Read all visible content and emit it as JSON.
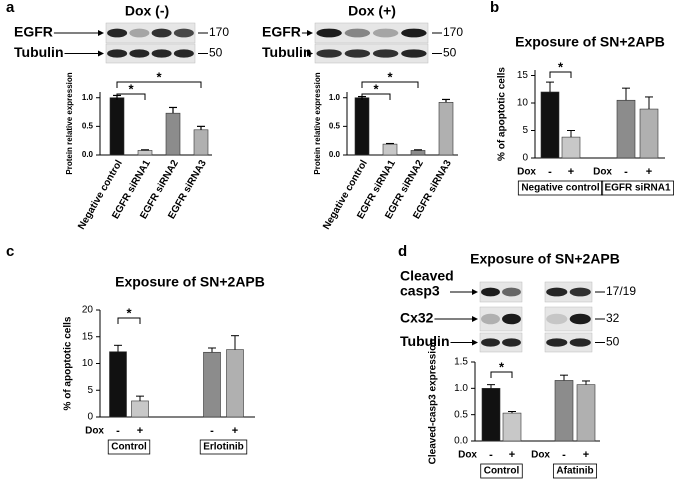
{
  "panels": [
    "a",
    "b",
    "c",
    "d"
  ],
  "blots": [
    {
      "title": "Dox (-)",
      "rows": [
        {
          "label": "EGFR",
          "size": "170"
        },
        {
          "label": "Tubulin",
          "size": "50"
        }
      ]
    },
    {
      "title": "Dox (+)",
      "rows": [
        {
          "label": "EGFR",
          "size": "170"
        },
        {
          "label": "Tubulin",
          "size": "50"
        }
      ]
    },
    {
      "rows": [
        {
          "label": [
            "Cleaved",
            "casp3"
          ],
          "size": "17/19"
        },
        {
          "label": "Cx32",
          "size": "32"
        },
        {
          "label": "Tubulin",
          "size": "50"
        }
      ]
    }
  ],
  "chart_data": [
    {
      "type": "bar",
      "ylabel": "Protein relative expression",
      "categories": [
        "Negative control",
        "EGFR siRNA1",
        "EGFR siRNA2",
        "EGFR siRNA3"
      ],
      "values": [
        1.0,
        0.08,
        0.73,
        0.44
      ],
      "errors": [
        0.04,
        0.01,
        0.1,
        0.06
      ],
      "colors": [
        "#111111",
        "#c8c8c8",
        "#8c8c8c",
        "#b0b0b0"
      ],
      "ylim": [
        0,
        1.1
      ],
      "yticks": [
        {
          "value": 0,
          "label": "0.0"
        },
        0.5,
        {
          "value": 1,
          "label": "1.0"
        }
      ],
      "brackets": [
        {
          "between": [
            0,
            1
          ],
          "label": "*"
        },
        {
          "between": [
            0,
            3
          ],
          "label": "*"
        }
      ]
    },
    {
      "type": "bar",
      "ylabel": "Protein relative expression",
      "categories": [
        "Negative control",
        "EGFR siRNA1",
        "EGFR siRNA2",
        "EGFR siRNA3"
      ],
      "values": [
        1.0,
        0.19,
        0.08,
        0.92
      ],
      "errors": [
        0.02,
        0.01,
        0.01,
        0.05
      ],
      "colors": [
        "#111111",
        "#c8c8c8",
        "#8c8c8c",
        "#b0b0b0"
      ],
      "ylim": [
        0,
        1.1
      ],
      "yticks": [
        {
          "value": 0,
          "label": "0.0"
        },
        0.5,
        {
          "value": 1,
          "label": "1.0"
        }
      ],
      "brackets": [
        {
          "between": [
            0,
            1
          ],
          "label": "*"
        },
        {
          "between": [
            0,
            2
          ],
          "label": "*"
        }
      ]
    },
    {
      "type": "grouped",
      "title": "Exposure of SN+2APB",
      "ylabel": "% of apoptotic cells",
      "categories": [
        "-",
        "+",
        "-",
        "+"
      ],
      "values": [
        12,
        3.8,
        10.5,
        8.9
      ],
      "errors": [
        1.8,
        1.2,
        2.2,
        2.2
      ],
      "colors": [
        "#111111",
        "#c8c8c8",
        "#8c8c8c",
        "#b0b0b0"
      ],
      "groups": [
        {
          "name": "Negative control",
          "row_label": "Dox"
        },
        {
          "name": "EGFR siRNA1",
          "row_label": "Dox"
        }
      ],
      "ylim": [
        0,
        16
      ],
      "yticks": [
        0,
        5,
        10,
        15
      ],
      "brackets": [
        {
          "between": [
            0,
            1
          ],
          "label": "*"
        }
      ]
    },
    {
      "type": "grouped",
      "title": "Exposure of SN+2APB",
      "ylabel": "% of apoptotic cells",
      "categories": [
        "-",
        "+",
        "-",
        "+"
      ],
      "values": [
        12.2,
        3.0,
        12.1,
        12.6
      ],
      "errors": [
        1.2,
        0.9,
        0.8,
        2.6
      ],
      "colors": [
        "#111111",
        "#c8c8c8",
        "#8c8c8c",
        "#b0b0b0"
      ],
      "groups": [
        {
          "name": "Control",
          "row_label": "Dox"
        },
        {
          "name": "Erlotinib"
        }
      ],
      "ylim": [
        0,
        20
      ],
      "yticks": [
        0,
        5,
        10,
        15,
        20
      ],
      "brackets": [
        {
          "between": [
            0,
            1
          ],
          "label": "*"
        }
      ]
    },
    {
      "type": "grouped",
      "title": "Exposure of SN+2APB",
      "ylabel": "Cleaved-casp3 expression",
      "categories": [
        "-",
        "+",
        "-",
        "+"
      ],
      "values": [
        1.0,
        0.53,
        1.15,
        1.07
      ],
      "errors": [
        0.07,
        0.03,
        0.1,
        0.07
      ],
      "colors": [
        "#111111",
        "#c8c8c8",
        "#8c8c8c",
        "#b0b0b0"
      ],
      "groups": [
        {
          "name": "Control",
          "row_label": "Dox"
        },
        {
          "name": "Afatinib",
          "row_label": "Dox"
        }
      ],
      "ylim": [
        0,
        1.5
      ],
      "yticks": [
        {
          "value": 0,
          "label": "0.0"
        },
        0.5,
        {
          "value": 1,
          "label": "1.0"
        },
        1.5
      ],
      "brackets": [
        {
          "between": [
            0,
            1
          ],
          "label": "*"
        }
      ]
    }
  ]
}
